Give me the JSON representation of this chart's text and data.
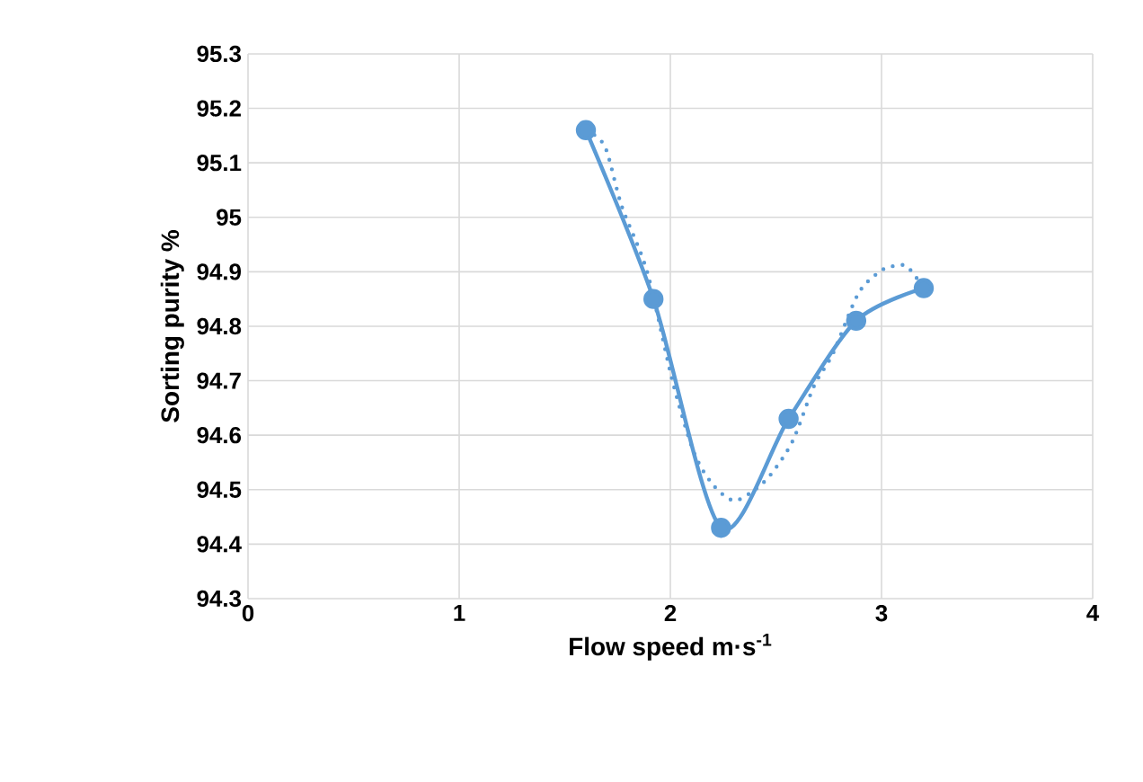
{
  "chart_data": {
    "type": "line",
    "xlabel": "Flow speed m·s$^{-1}$",
    "ylabel": "Sorting purity %",
    "xlim": [
      0,
      4
    ],
    "xticks": [
      0,
      1,
      2,
      3,
      4
    ],
    "ylim": [
      94.3,
      95.3
    ],
    "yticks": [
      94.3,
      94.4,
      94.5,
      94.6,
      94.7,
      94.8,
      94.9,
      95,
      95.1,
      95.2,
      95.3
    ],
    "grid": true,
    "series": [
      {
        "color": "#5b9bd5",
        "marker": "circle",
        "line_style": "solid",
        "x": [
          1.6,
          1.92,
          2.24,
          2.56,
          2.88,
          3.2
        ],
        "values": [
          95.16,
          94.85,
          94.43,
          94.63,
          94.81,
          94.87
        ]
      },
      {
        "type": "line",
        "color": "#5b9bd5",
        "marker": "none",
        "line_style": "dotted",
        "x": [
          1.6,
          1.69,
          1.77,
          1.89,
          2.01,
          2.11,
          2.2,
          2.3,
          2.4,
          2.48,
          2.58,
          2.68,
          2.77,
          2.89,
          2.99,
          3.05,
          3.12,
          3.2
        ],
        "values": [
          95.16,
          95.13,
          95.02,
          94.9,
          94.7,
          94.57,
          94.51,
          94.48,
          94.5,
          94.53,
          94.59,
          94.69,
          94.75,
          94.86,
          94.9,
          94.91,
          94.91,
          94.87
        ]
      }
    ]
  }
}
